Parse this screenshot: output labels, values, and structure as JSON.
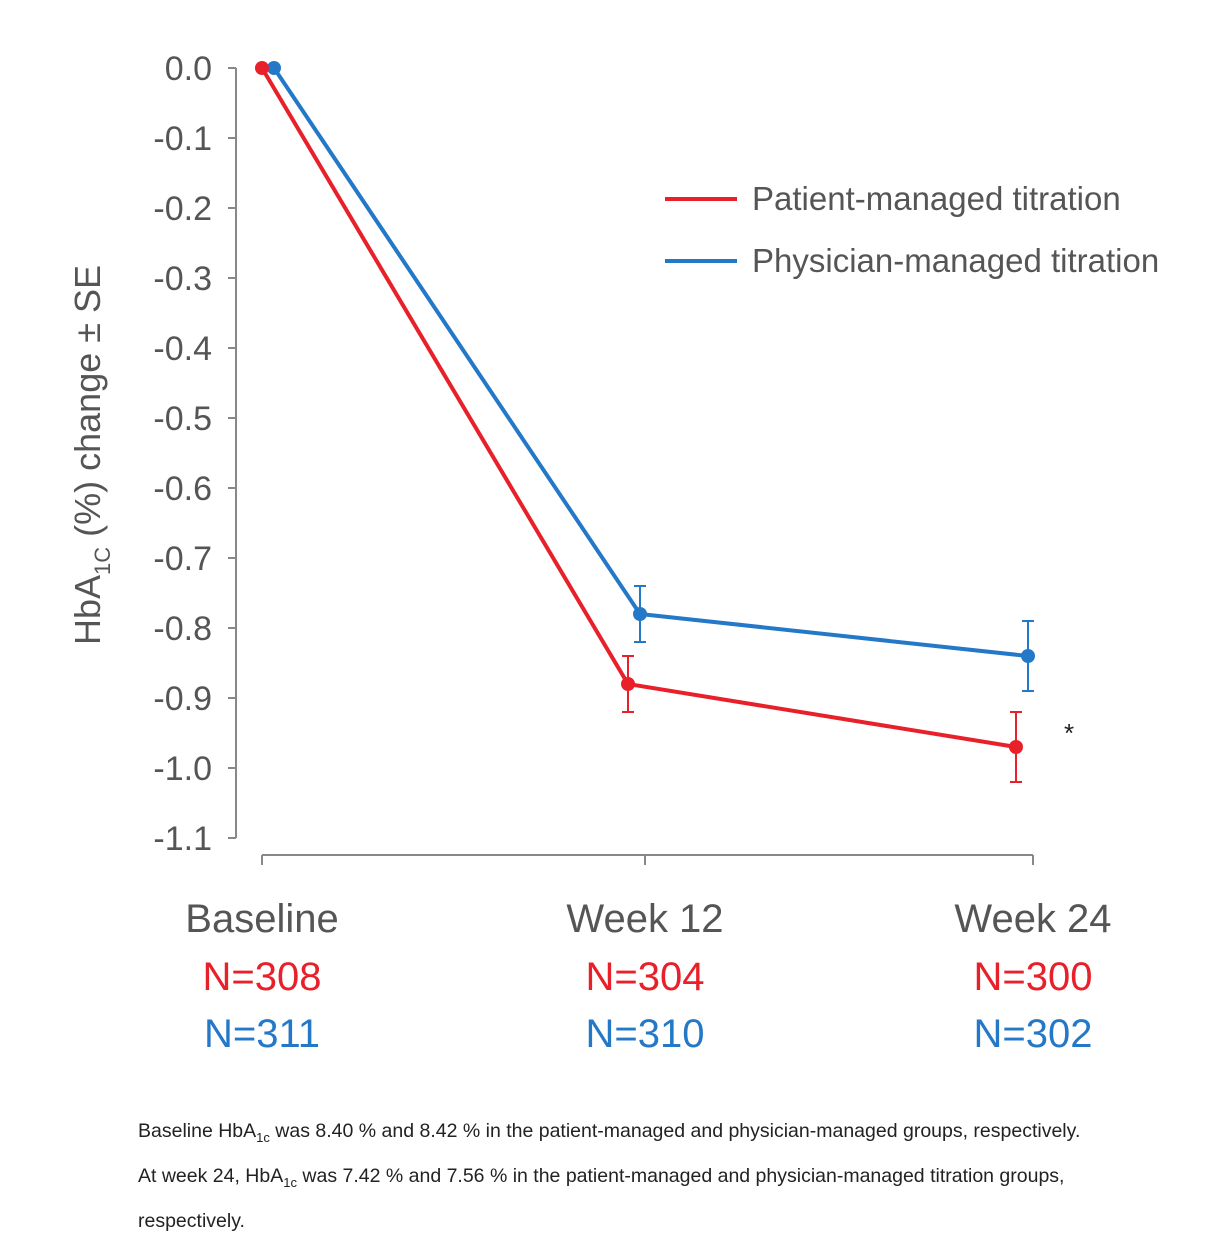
{
  "chart_data": {
    "type": "line",
    "ylabel_main": "HbA",
    "ylabel_sub": "1C",
    "ylabel_rest": "(%) change ± SE",
    "categories": [
      "Baseline",
      "Week 12",
      "Week 24"
    ],
    "ylim": [
      -1.1,
      0.0
    ],
    "yticks": [
      "0.0",
      "-0.1",
      "-0.2",
      "-0.3",
      "-0.4",
      "-0.5",
      "-0.6",
      "-0.7",
      "-0.8",
      "-0.9",
      "-1.0",
      "-1.1"
    ],
    "series": [
      {
        "name": "Patient-managed titration",
        "color": "#e8202a",
        "values": [
          0.0,
          -0.88,
          -0.97
        ],
        "se": [
          0.0,
          0.04,
          0.05
        ],
        "n": [
          "N=308",
          "N=304",
          "N=300"
        ]
      },
      {
        "name": "Physician-managed titration",
        "color": "#2478c8",
        "values": [
          0.0,
          -0.78,
          -0.84
        ],
        "se": [
          0.0,
          0.04,
          0.05
        ],
        "n": [
          "N=311",
          "N=310",
          "N=302"
        ]
      }
    ],
    "annotation": "*"
  },
  "footnote": {
    "p1": "Baseline HbA",
    "sub1": "1c",
    "p2": " was 8.40 % and 8.42 % in the patient-managed and physician-managed groups, respectively. At week 24, HbA",
    "sub2": "1c",
    "p3": " was 7.42 % and 7.56 % in the patient-managed and physician-managed titration groups, respectively."
  }
}
